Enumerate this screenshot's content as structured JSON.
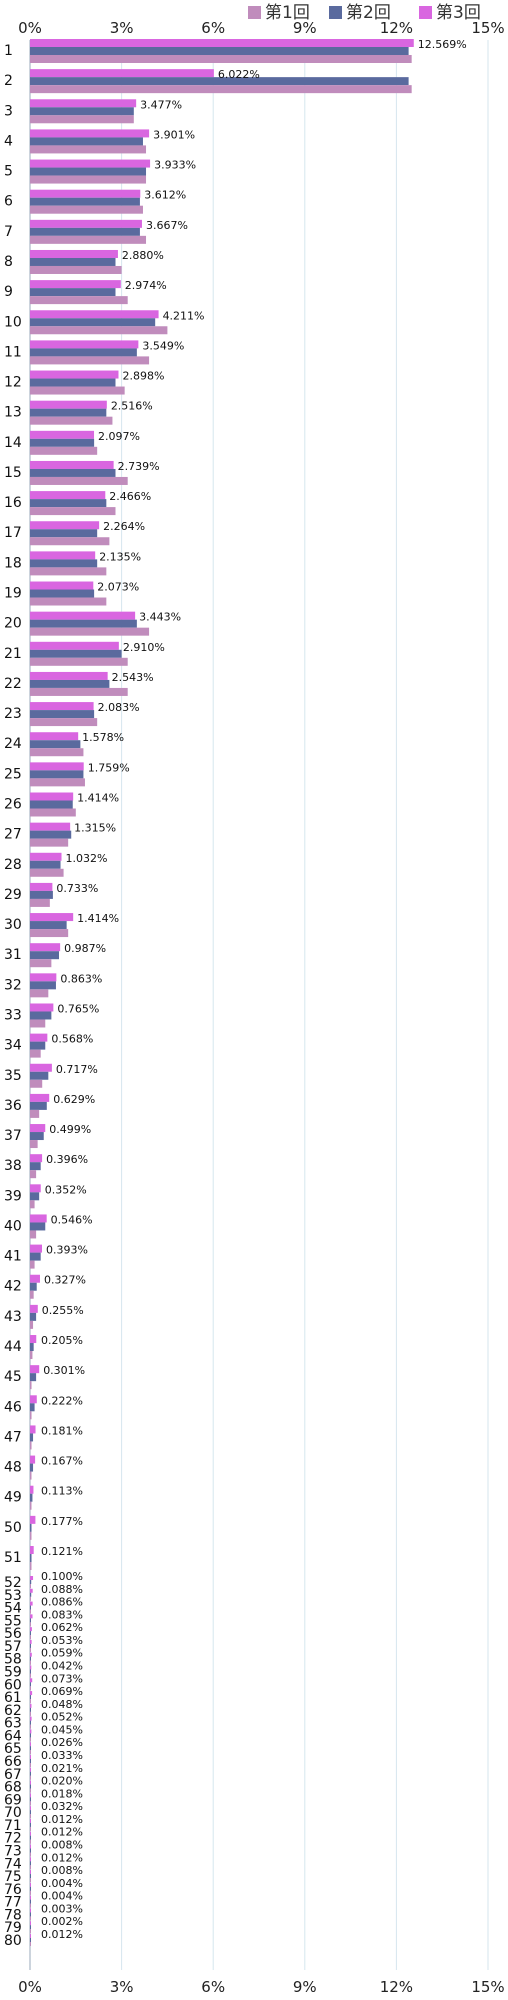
{
  "chart_data": {
    "type": "bar",
    "orientation": "horizontal",
    "categories": [
      "1",
      "2",
      "3",
      "4",
      "5",
      "6",
      "7",
      "8",
      "9",
      "10",
      "11",
      "12",
      "13",
      "14",
      "15",
      "16",
      "17",
      "18",
      "19",
      "20",
      "21",
      "22",
      "23",
      "24",
      "25",
      "26",
      "27",
      "28",
      "29",
      "30",
      "31",
      "32",
      "33",
      "34",
      "35",
      "36",
      "37",
      "38",
      "39",
      "40",
      "41",
      "42",
      "43",
      "44",
      "45",
      "46",
      "47",
      "48",
      "49",
      "50",
      "51",
      "52",
      "53",
      "54",
      "55",
      "56",
      "57",
      "58",
      "59",
      "60",
      "61",
      "62",
      "63",
      "64",
      "65",
      "66",
      "67",
      "68",
      "69",
      "70",
      "71",
      "72",
      "73",
      "74",
      "75",
      "76",
      "77",
      "78",
      "79",
      "80"
    ],
    "series": [
      {
        "name": "第3回",
        "color": "#d966e0",
        "values": [
          12.569,
          6.022,
          3.477,
          3.901,
          3.933,
          3.612,
          3.667,
          2.88,
          2.974,
          4.211,
          3.549,
          2.898,
          2.516,
          2.097,
          2.739,
          2.466,
          2.264,
          2.135,
          2.073,
          3.443,
          2.91,
          2.543,
          2.083,
          1.578,
          1.759,
          1.414,
          1.315,
          1.032,
          0.733,
          1.414,
          0.987,
          0.863,
          0.765,
          0.568,
          0.717,
          0.629,
          0.499,
          0.396,
          0.352,
          0.546,
          0.393,
          0.327,
          0.255,
          0.205,
          0.301,
          0.222,
          0.181,
          0.167,
          0.113,
          0.177,
          0.121,
          0.1,
          0.088,
          0.086,
          0.083,
          0.062,
          0.053,
          0.059,
          0.042,
          0.073,
          0.069,
          0.048,
          0.052,
          0.045,
          0.026,
          0.033,
          0.021,
          0.02,
          0.018,
          0.032,
          0.012,
          0.012,
          0.008,
          0.012,
          0.008,
          0.004,
          0.004,
          0.003,
          0.002,
          0.012
        ],
        "labels": [
          "12.569%",
          "6.022%",
          "3.477%",
          "3.901%",
          "3.933%",
          "3.612%",
          "3.667%",
          "2.880%",
          "2.974%",
          "4.211%",
          "3.549%",
          "2.898%",
          "2.516%",
          "2.097%",
          "2.739%",
          "2.466%",
          "2.264%",
          "2.135%",
          "2.073%",
          "3.443%",
          "2.910%",
          "2.543%",
          "2.083%",
          "1.578%",
          "1.759%",
          "1.414%",
          "1.315%",
          "1.032%",
          "0.733%",
          "1.414%",
          "0.987%",
          "0.863%",
          "0.765%",
          "0.568%",
          "0.717%",
          "0.629%",
          "0.499%",
          "0.396%",
          "0.352%",
          "0.546%",
          "0.393%",
          "0.327%",
          "0.255%",
          "0.205%",
          "0.301%",
          "0.222%",
          "0.181%",
          "0.167%",
          "0.113%",
          "0.177%",
          "0.121%",
          "0.100%",
          "0.088%",
          "0.086%",
          "0.083%",
          "0.062%",
          "0.053%",
          "0.059%",
          "0.042%",
          "0.073%",
          "0.069%",
          "0.048%",
          "0.052%",
          "0.045%",
          "0.026%",
          "0.033%",
          "0.021%",
          "0.020%",
          "0.018%",
          "0.032%",
          "0.012%",
          "0.012%",
          "0.008%",
          "0.012%",
          "0.008%",
          "0.004%",
          "0.004%",
          "0.003%",
          "0.002%",
          "0.012%"
        ]
      },
      {
        "name": "第2回",
        "color": "#5a6a9e",
        "values": [
          12.4,
          12.4,
          3.4,
          3.7,
          3.8,
          3.6,
          3.6,
          2.8,
          2.8,
          4.1,
          3.5,
          2.8,
          2.5,
          2.1,
          2.8,
          2.5,
          2.2,
          2.2,
          2.1,
          3.5,
          3.0,
          2.6,
          2.1,
          1.65,
          1.75,
          1.4,
          1.35,
          1.0,
          0.75,
          1.2,
          0.95,
          0.85,
          0.7,
          0.5,
          0.6,
          0.55,
          0.45,
          0.35,
          0.3,
          0.5,
          0.35,
          0.22,
          0.2,
          0.12,
          0.2,
          0.15,
          0.1,
          0.1,
          0.08,
          0.05,
          0.05,
          0.04,
          0.04,
          0.03,
          0.03,
          0.03,
          0.03,
          0.03,
          0.03,
          0.03,
          0.03,
          0.02,
          0.02,
          0.02,
          0.02,
          0.02,
          0.02,
          0.02,
          0.02,
          0.02,
          0.01,
          0.01,
          0.01,
          0.01,
          0.01,
          0.01,
          0.01,
          0.01,
          0.01,
          0.01
        ]
      },
      {
        "name": "第1回",
        "color": "#c08cbc",
        "values": [
          12.5,
          12.5,
          3.4,
          3.8,
          3.8,
          3.7,
          3.8,
          3.0,
          3.2,
          4.5,
          3.9,
          3.1,
          2.7,
          2.2,
          3.2,
          2.8,
          2.6,
          2.5,
          2.5,
          3.9,
          3.2,
          3.2,
          2.2,
          1.75,
          1.8,
          1.5,
          1.25,
          1.1,
          0.65,
          1.25,
          0.7,
          0.6,
          0.5,
          0.35,
          0.4,
          0.3,
          0.25,
          0.2,
          0.15,
          0.2,
          0.15,
          0.12,
          0.1,
          0.08,
          0.05,
          0.05,
          0.05,
          0.04,
          0.04,
          0.03,
          0.03,
          0.03,
          0.03,
          0.03,
          0.03,
          0.02,
          0.02,
          0.02,
          0.02,
          0.02,
          0.02,
          0.02,
          0.02,
          0.02,
          0.02,
          0.02,
          0.02,
          0.02,
          0.02,
          0.02,
          0.01,
          0.01,
          0.01,
          0.01,
          0.01,
          0.01,
          0.01,
          0.01,
          0.01,
          0.01
        ]
      }
    ],
    "xticks": [
      "0%",
      "3%",
      "6%",
      "9%",
      "12%",
      "15%"
    ],
    "xlim": [
      0,
      15
    ],
    "grid": true,
    "legend_position": "top-right"
  },
  "legend": [
    {
      "name": "第1回",
      "color": "#c08cbc"
    },
    {
      "name": "第2回",
      "color": "#5a6a9e"
    },
    {
      "name": "第3回",
      "color": "#d966e0"
    }
  ]
}
